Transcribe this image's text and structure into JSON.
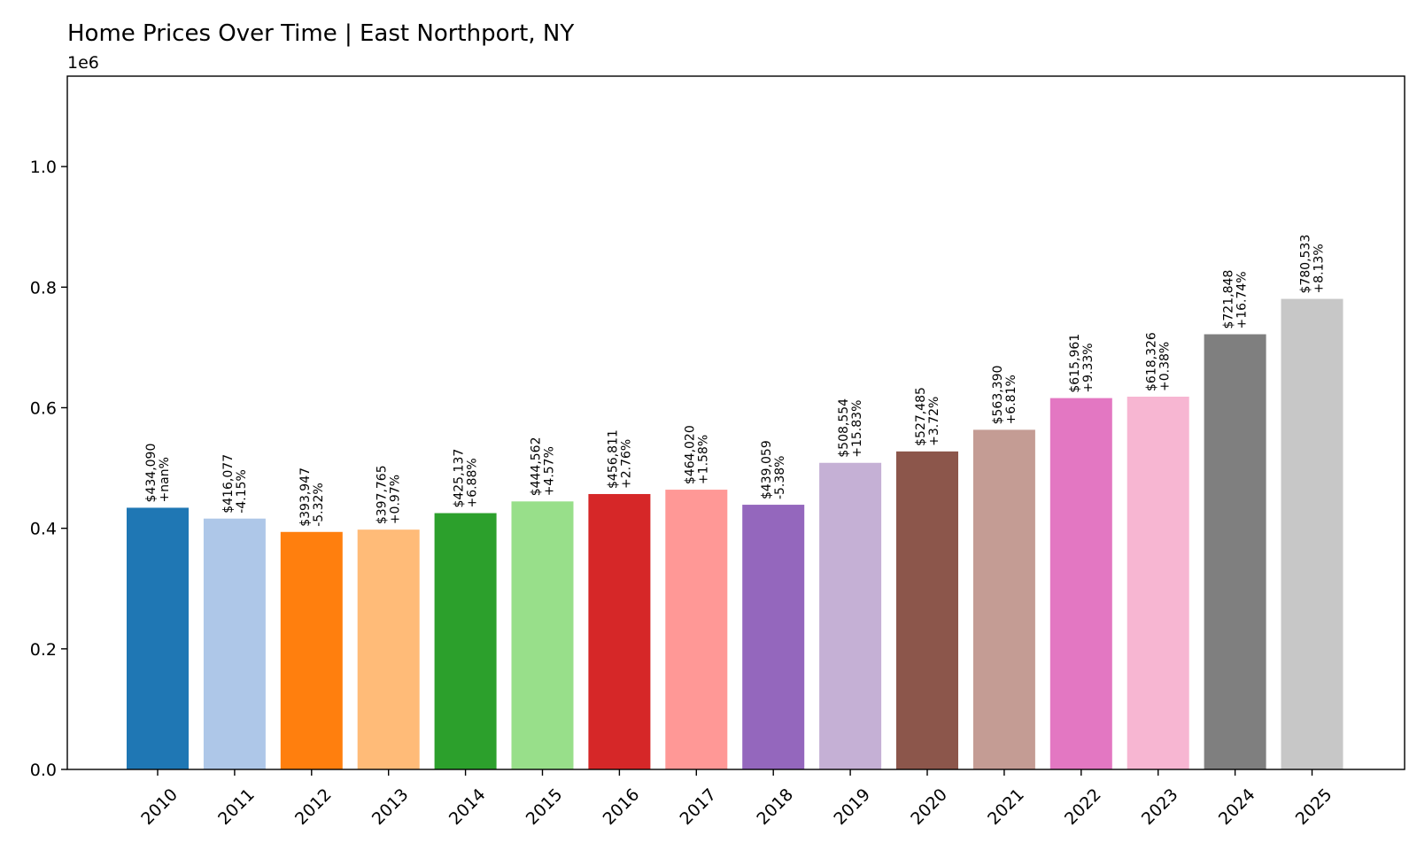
{
  "chart_data": {
    "type": "bar",
    "title": "Home Prices Over Time | East Northport, NY",
    "xlabel": "",
    "ylabel": "",
    "y_offset_label": "1e6",
    "ylim": [
      0,
      1.15
    ],
    "yticks": [
      0.0,
      0.2,
      0.4,
      0.6,
      0.8,
      1.0
    ],
    "ytick_labels": [
      "0.0",
      "0.2",
      "0.4",
      "0.6",
      "0.8",
      "1.0"
    ],
    "grid": false,
    "legend": "none",
    "categories": [
      "2010",
      "2011",
      "2012",
      "2013",
      "2014",
      "2015",
      "2016",
      "2017",
      "2018",
      "2019",
      "2020",
      "2021",
      "2022",
      "2023",
      "2024",
      "2025"
    ],
    "values": [
      434090,
      416077,
      393947,
      397765,
      425137,
      444562,
      456811,
      464020,
      439059,
      508554,
      527485,
      563390,
      615961,
      618326,
      721848,
      780533
    ],
    "price_labels": [
      "$434,090",
      "$416,077",
      "$393,947",
      "$397,765",
      "$425,137",
      "$444,562",
      "$456,811",
      "$464,020",
      "$439,059",
      "$508,554",
      "$527,485",
      "$563,390",
      "$615,961",
      "$618,326",
      "$721,848",
      "$780,533"
    ],
    "change_labels": [
      "+nan%",
      "-4.15%",
      "-5.32%",
      "+0.97%",
      "+6.88%",
      "+4.57%",
      "+2.76%",
      "+1.58%",
      "-5.38%",
      "+15.83%",
      "+3.72%",
      "+6.81%",
      "+9.33%",
      "+0.38%",
      "+16.74%",
      "+8.13%"
    ],
    "colors": [
      "#1f77b4",
      "#aec7e8",
      "#ff7f0e",
      "#ffbb78",
      "#2ca02c",
      "#98df8a",
      "#d62728",
      "#ff9896",
      "#9467bd",
      "#c5b0d5",
      "#8c564b",
      "#c49c94",
      "#e377c2",
      "#f7b6d2",
      "#7f7f7f",
      "#c7c7c7"
    ]
  }
}
